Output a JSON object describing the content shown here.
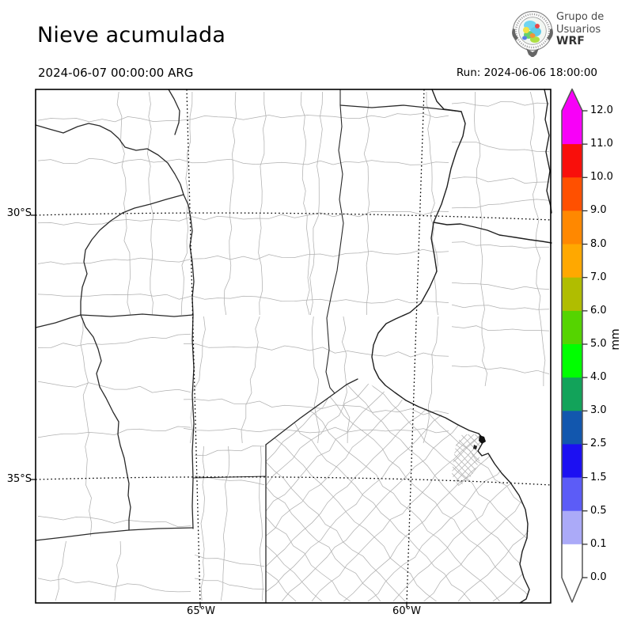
{
  "header": {
    "title": "Nieve acumulada",
    "valid_time": "2024-06-07 00:00:00 ARG",
    "run_label": "Run: 2024-06-06 18:00:00",
    "logo": {
      "line1": "Grupo de",
      "line2": "Usuarios",
      "line3": "WRF"
    }
  },
  "map": {
    "region": "central Argentina provinces with department boundaries",
    "lat_ticks": [
      {
        "label": "30°S"
      },
      {
        "label": "35°S"
      }
    ],
    "lon_ticks": [
      {
        "label": "65°W"
      },
      {
        "label": "60°W"
      }
    ],
    "colors": {
      "frame": "#000000",
      "gridline": "#000000",
      "department_line": "#b0b0b0",
      "province_line": "#2a2a2a",
      "river_line": "#1f1f1f",
      "background": "#ffffff"
    }
  },
  "colorbar": {
    "unit": "mm",
    "over_color": "#f800f8",
    "under_color": "#ffffff",
    "levels": [
      {
        "label": "12.0"
      },
      {
        "label": "11.0"
      },
      {
        "label": "10.0"
      },
      {
        "label": "9.0"
      },
      {
        "label": "8.0"
      },
      {
        "label": "7.0"
      },
      {
        "label": "6.0"
      },
      {
        "label": "5.0"
      },
      {
        "label": "4.0"
      },
      {
        "label": "3.0"
      },
      {
        "label": "2.5"
      },
      {
        "label": "1.5"
      },
      {
        "label": "0.5"
      },
      {
        "label": "0.1"
      },
      {
        "label": "0.0"
      }
    ],
    "segments": [
      {
        "range": "11.0-12.0",
        "color": "#f800f8"
      },
      {
        "range": "10.0-11.0",
        "color": "#f90f0b"
      },
      {
        "range": "9.0-10.0",
        "color": "#ff5000"
      },
      {
        "range": "8.0-9.0",
        "color": "#ff8800"
      },
      {
        "range": "7.0-8.0",
        "color": "#ffa800"
      },
      {
        "range": "6.0-7.0",
        "color": "#b0bd00"
      },
      {
        "range": "5.0-6.0",
        "color": "#55d400"
      },
      {
        "range": "4.0-5.0",
        "color": "#00ff00"
      },
      {
        "range": "3.0-4.0",
        "color": "#12a35a"
      },
      {
        "range": "2.5-3.0",
        "color": "#1257ae"
      },
      {
        "range": "1.5-2.5",
        "color": "#1c10f2"
      },
      {
        "range": "0.5-1.5",
        "color": "#5c5cf7"
      },
      {
        "range": "0.1-0.5",
        "color": "#abaaf8"
      },
      {
        "range": "0.0-0.1",
        "color": "#ffffff"
      }
    ]
  }
}
